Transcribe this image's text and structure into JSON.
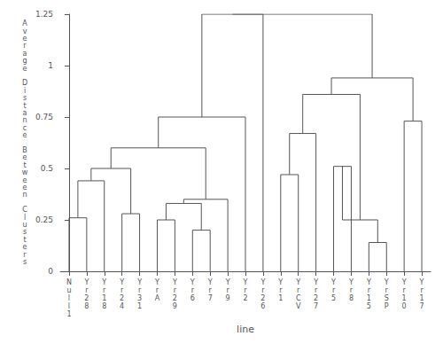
{
  "chart_data": {
    "type": "dendrogram",
    "categories": [
      "N\nu\nl\nl\n1",
      "Y\nr\n2\n8",
      "Y\nr\n1\n8",
      "Y\nr\n2\n4",
      "Y\nr\n3\n1",
      "Y\nr\nA",
      "Y\nr\n2\n9",
      "Y\nr\n6",
      "Y\nr\n7",
      "Y\nr\n9",
      "Y\nr\n2",
      "Y\nr\n2\n6",
      "Y\nr\n1",
      "Y\nr\nC\nV",
      "Y\nr\n2\n7",
      "Y\nr\n5",
      "Y\nr\n8",
      "Y\nr\n1\n5",
      "Y\nr\nS\nP",
      "Y\nr\n1\n0",
      "Y\nr\n1\n7"
    ],
    "xlabel": "line",
    "ylabel": "A\nv\ne\nr\na\ng\ne\n \nD\ni\ns\nt\na\nn\nc\ne\n \nB\ne\nt\nw\ne\ne\nn\n \nC\nl\nu\ns\nt\ne\nr\ns",
    "ylim": [
      0.0,
      1.25
    ],
    "yticks": [
      0.0,
      0.25,
      0.5,
      0.75,
      1.0,
      1.25
    ],
    "grid": false,
    "color": "#555555",
    "merges": [
      {
        "left": 0,
        "right": 1,
        "height": 0.26,
        "id": 21
      },
      {
        "left": 21,
        "right": 2,
        "height": 0.44,
        "id": 22
      },
      {
        "left": 3,
        "right": 4,
        "height": 0.28,
        "id": 23
      },
      {
        "left": 22,
        "right": 23,
        "height": 0.5,
        "id": 24
      },
      {
        "left": 5,
        "right": 6,
        "height": 0.25,
        "id": 25
      },
      {
        "left": 7,
        "right": 8,
        "height": 0.2,
        "id": 26
      },
      {
        "left": 25,
        "right": 26,
        "height": 0.33,
        "id": 27
      },
      {
        "left": 27,
        "right": 9,
        "height": 0.35,
        "id": 28
      },
      {
        "left": 24,
        "right": 28,
        "height": 0.6,
        "id": 29
      },
      {
        "left": 29,
        "right": 10,
        "height": 0.75,
        "id": 30
      },
      {
        "left": 11,
        "right": 30,
        "height": 1.25,
        "id": 31
      },
      {
        "left": 12,
        "right": 13,
        "height": 0.47,
        "id": 32
      },
      {
        "left": 14,
        "right": 32,
        "height": 0.67,
        "id": 33
      },
      {
        "left": 15,
        "right": 16,
        "height": 0.51,
        "id": 34
      },
      {
        "left": 17,
        "right": 18,
        "height": 0.14,
        "id": 35
      },
      {
        "left": 34,
        "right": 35,
        "height": 0.25,
        "id": 36
      },
      {
        "left": 33,
        "right": 36,
        "height": 0.86,
        "id": 37
      },
      {
        "left": 19,
        "right": 20,
        "height": 0.73,
        "id": 38
      },
      {
        "left": 37,
        "right": 38,
        "height": 0.94,
        "id": 39
      },
      {
        "left": 31,
        "right": 39,
        "height": 1.25,
        "id": 40
      }
    ]
  }
}
